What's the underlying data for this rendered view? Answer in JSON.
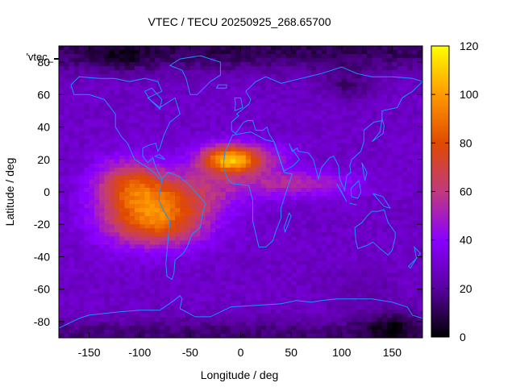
{
  "chart_data": {
    "type": "heatmap",
    "title": "VTEC / TECU 20250925_268.65700",
    "xlabel": "Longitude / deg",
    "ylabel": "Latitude / deg",
    "xlim": [
      -180,
      180
    ],
    "ylim": [
      -90,
      90
    ],
    "xticks": [
      -150,
      -100,
      -50,
      0,
      50,
      100,
      150
    ],
    "yticks": [
      -80,
      -60,
      -40,
      -20,
      0,
      20,
      40,
      60,
      80
    ],
    "xtick_labels": [
      "-150",
      "-100",
      "-50",
      "0",
      "50",
      "100",
      "150"
    ],
    "ytick_labels": [
      "-80",
      "-60",
      "-40",
      "-20",
      "0",
      "20",
      "40",
      "60",
      "80"
    ],
    "legend_label": "'vtec_",
    "colorbar": {
      "min": 0,
      "max": 120,
      "ticks": [
        0,
        20,
        40,
        60,
        80,
        100,
        120
      ],
      "tick_labels": [
        "0",
        "20",
        "40",
        "60",
        "80",
        "100",
        "120"
      ],
      "palette": [
        "#000000",
        "#5a00a0",
        "#8a00ff",
        "#c03a7e",
        "#e04a00",
        "#ff9a00",
        "#ffff00"
      ]
    },
    "grid": false,
    "coastline_color": "#1e90ff",
    "field_features": [
      {
        "feature": "background",
        "value": 28
      },
      {
        "feature": "polar_north_low",
        "lat": 85,
        "lon": 0,
        "value": 14
      },
      {
        "feature": "polar_south_low",
        "lat": -85,
        "lon": 0,
        "value": 12
      },
      {
        "feature": "siberia_low",
        "lat": 65,
        "lon": 105,
        "value": 10
      },
      {
        "feature": "antarctic_low",
        "lat": -80,
        "lon": 150,
        "value": 5
      },
      {
        "feature": "crest_north_atlantic",
        "lat": 20,
        "lon": -10,
        "value": 108
      },
      {
        "feature": "crest_south_america",
        "lat": -20,
        "lon": -80,
        "value": 88
      },
      {
        "feature": "equatorial_peak",
        "lat": 0,
        "lon": -90,
        "value": 75
      },
      {
        "feature": "africa_indian_band",
        "lat": 5,
        "lon": 60,
        "value": 55
      }
    ]
  }
}
